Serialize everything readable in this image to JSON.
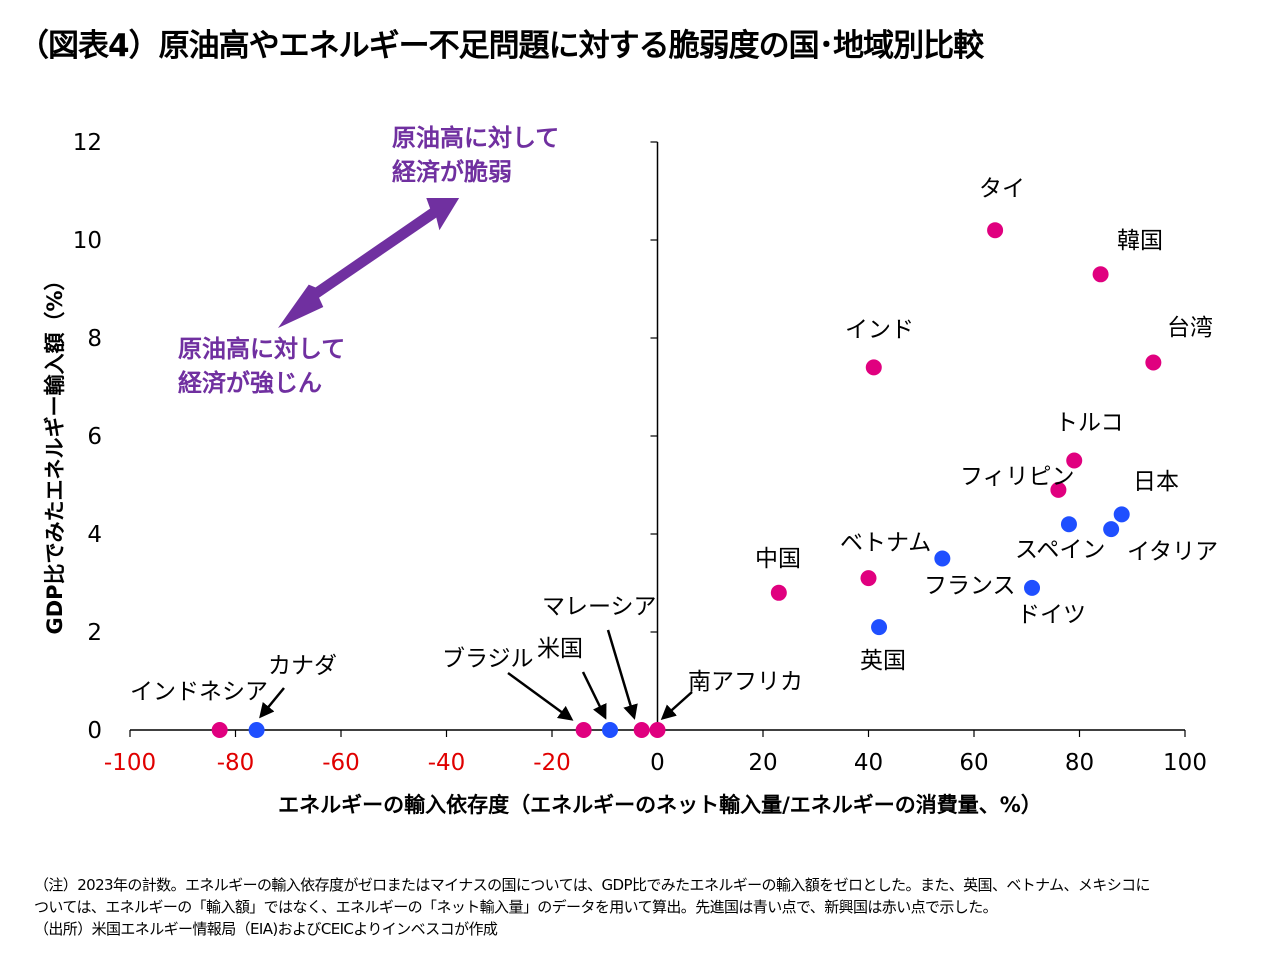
{
  "title": "（図表4）原油高やエネルギー不足問題に対する脆弱度の国･地域別比較",
  "chart_data": {
    "type": "scatter",
    "xlabel": "エネルギーの輸入依存度（エネルギーのネット輸入量/エネルギーの消費量、%）",
    "ylabel": "GDP比でみたエネルギー輸入額（%）",
    "xlim": [
      -100,
      100
    ],
    "ylim": [
      0,
      12
    ],
    "xticks": [
      "-100",
      "-80",
      "-60",
      "-40",
      "-20",
      "0",
      "20",
      "40",
      "60",
      "80",
      "100"
    ],
    "yticks": [
      "0",
      "2",
      "4",
      "6",
      "8",
      "10",
      "12"
    ],
    "negative_tick_color": "#e00000",
    "grid": false,
    "colors": {
      "advanced": "#1f4fff",
      "emerging": "#e0007f",
      "annotation": "#7030a0"
    },
    "annotations": {
      "upper": [
        "原油高に対して",
        "経済が脆弱"
      ],
      "lower": [
        "原油高に対して",
        "経済が強じん"
      ]
    },
    "points": [
      {
        "name": "インドネシア",
        "x": -83,
        "y": 0,
        "group": "emerging"
      },
      {
        "name": "カナダ",
        "x": -76,
        "y": 0,
        "group": "advanced"
      },
      {
        "name": "ブラジル",
        "x": -14,
        "y": 0,
        "group": "emerging"
      },
      {
        "name": "米国",
        "x": -9,
        "y": 0,
        "group": "advanced"
      },
      {
        "name": "マレーシア",
        "x": -3,
        "y": 0,
        "group": "emerging"
      },
      {
        "name": "南アフリカ",
        "x": 0,
        "y": 0,
        "group": "emerging"
      },
      {
        "name": "中国",
        "x": 23,
        "y": 2.8,
        "group": "emerging"
      },
      {
        "name": "ベトナム",
        "x": 40,
        "y": 3.1,
        "group": "emerging"
      },
      {
        "name": "英国",
        "x": 42,
        "y": 2.1,
        "group": "advanced"
      },
      {
        "name": "インド",
        "x": 41,
        "y": 7.4,
        "group": "emerging"
      },
      {
        "name": "フランス",
        "x": 54,
        "y": 3.5,
        "group": "advanced"
      },
      {
        "name": "タイ",
        "x": 64,
        "y": 10.2,
        "group": "emerging"
      },
      {
        "name": "ドイツ",
        "x": 71,
        "y": 2.9,
        "group": "advanced"
      },
      {
        "name": "フィリピン",
        "x": 76,
        "y": 4.9,
        "group": "emerging"
      },
      {
        "name": "スペイン",
        "x": 78,
        "y": 4.2,
        "group": "advanced"
      },
      {
        "name": "トルコ",
        "x": 79,
        "y": 5.5,
        "group": "emerging"
      },
      {
        "name": "韓国",
        "x": 84,
        "y": 9.3,
        "group": "emerging"
      },
      {
        "name": "イタリア",
        "x": 86,
        "y": 4.1,
        "group": "advanced"
      },
      {
        "name": "日本",
        "x": 88,
        "y": 4.4,
        "group": "advanced"
      },
      {
        "name": "台湾",
        "x": 94,
        "y": 7.5,
        "group": "emerging"
      }
    ]
  },
  "notes": [
    "（注）2023年の計数。エネルギーの輸入依存度がゼロまたはマイナスの国については、GDP比でみたエネルギーの輸入額をゼロとした。また、英国、ベトナム、メキシコに",
    "ついては、エネルギーの「輸入額」ではなく、エネルギーの「ネット輸入量」のデータを用いて算出。先進国は青い点で、新興国は赤い点で示した。",
    "（出所）米国エネルギー情報局（EIA)およびCEICよりインベスコが作成"
  ]
}
